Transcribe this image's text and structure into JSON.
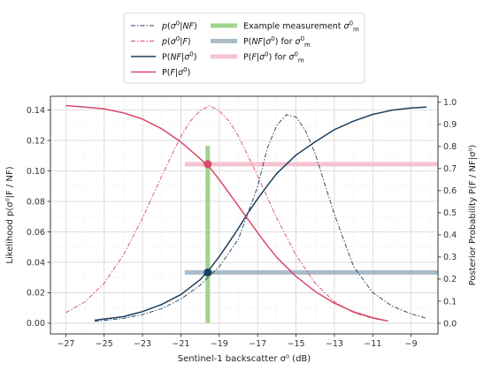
{
  "chart_data": {
    "type": "line",
    "xlabel": "Sentinel-1 backscatter σ⁰ (dB)",
    "ylabel_left": "Likelihood p(σ⁰|F / NF)",
    "ylabel_right": "Posterior Probability P(F / NF|σ⁰)",
    "xlim": [
      -27.8,
      -7.6
    ],
    "ylim_left": [
      -0.007,
      0.149
    ],
    "ylim_right": [
      -0.048,
      1.027
    ],
    "x_ticks": [
      -27,
      -25,
      -23,
      -21,
      -19,
      -17,
      -15,
      -13,
      -11,
      -9
    ],
    "x_tick_labels": [
      "−27",
      "−25",
      "−23",
      "−21",
      "−19",
      "−17",
      "−15",
      "−13",
      "−11",
      "−9"
    ],
    "y_left_ticks": [
      0.0,
      0.02,
      0.04,
      0.06,
      0.08,
      0.1,
      0.12,
      0.14
    ],
    "y_left_tick_labels": [
      "0.00",
      "0.02",
      "0.04",
      "0.06",
      "0.08",
      "0.10",
      "0.12",
      "0.14"
    ],
    "y_right_ticks": [
      0.0,
      0.1,
      0.2,
      0.3,
      0.4,
      0.5,
      0.6,
      0.7,
      0.8,
      0.9,
      1.0
    ],
    "y_right_tick_labels": [
      "0.0",
      "0.1",
      "0.2",
      "0.3",
      "0.4",
      "0.5",
      "0.6",
      "0.7",
      "0.8",
      "0.9",
      "1.0"
    ],
    "grid": true,
    "legend_placement": "top-center",
    "series": [
      {
        "name": "p(σ⁰|NF)",
        "axis": "left",
        "style": "dashdot",
        "color": "#1b3f5e",
        "x": [
          -25.5,
          -24,
          -23,
          -22,
          -21,
          -20,
          -19,
          -18,
          -17,
          -16.5,
          -16,
          -15.5,
          -15,
          -14.5,
          -14,
          -13,
          -12,
          -11,
          -10,
          -9,
          -8.2
        ],
        "y": [
          0.0012,
          0.0032,
          0.0057,
          0.0096,
          0.0159,
          0.0249,
          0.0372,
          0.0553,
          0.0898,
          0.1148,
          0.13,
          0.1369,
          0.1354,
          0.1263,
          0.1113,
          0.0715,
          0.0372,
          0.0201,
          0.0113,
          0.0062,
          0.0032
        ]
      },
      {
        "name": "p(σ⁰|F)",
        "axis": "left",
        "style": "dashdot",
        "color": "#d9496a",
        "x": [
          -27,
          -26,
          -25,
          -24,
          -23,
          -22,
          -21,
          -20.5,
          -20,
          -19.5,
          -19,
          -18.5,
          -18,
          -17,
          -16,
          -15,
          -14,
          -13,
          -12,
          -11,
          -10.5
        ],
        "y": [
          0.0069,
          0.0141,
          0.0262,
          0.0447,
          0.069,
          0.0967,
          0.1227,
          0.1329,
          0.1394,
          0.1428,
          0.1394,
          0.1329,
          0.1227,
          0.0967,
          0.069,
          0.0447,
          0.0262,
          0.0141,
          0.0069,
          0.0031,
          0.002
        ]
      },
      {
        "name": "P(NF|σ⁰)",
        "axis": "right",
        "style": "solid",
        "color": "#1b3f5e",
        "x": [
          -25.5,
          -24,
          -23,
          -22,
          -21,
          -20,
          -19.5,
          -19,
          -18.5,
          -18,
          -17.5,
          -17,
          -16.5,
          -16,
          -15,
          -14,
          -13,
          -12,
          -11,
          -10,
          -9,
          -8.2
        ],
        "y": [
          0.014,
          0.03,
          0.053,
          0.085,
          0.13,
          0.197,
          0.245,
          0.302,
          0.365,
          0.43,
          0.5,
          0.563,
          0.622,
          0.678,
          0.761,
          0.821,
          0.876,
          0.915,
          0.945,
          0.964,
          0.974,
          0.978
        ]
      },
      {
        "name": "P(F|σ⁰)",
        "axis": "right",
        "style": "solid",
        "color": "#d9496a",
        "x": [
          -27,
          -26,
          -25,
          -24,
          -23,
          -22,
          -21,
          -20,
          -19.5,
          -19,
          -18.5,
          -18,
          -17.5,
          -17,
          -16.5,
          -16,
          -15,
          -14,
          -13,
          -12,
          -11,
          -10.2
        ],
        "y": [
          0.985,
          0.978,
          0.97,
          0.952,
          0.924,
          0.88,
          0.82,
          0.745,
          0.705,
          0.65,
          0.59,
          0.53,
          0.47,
          0.41,
          0.352,
          0.298,
          0.212,
          0.144,
          0.091,
          0.052,
          0.025,
          0.01
        ]
      }
    ],
    "example_measurement": {
      "name": "Example measurement σ⁰ₘ",
      "x": -19.6,
      "y_range_left": [
        0.0,
        0.1165
      ],
      "color": "#9fd48d"
    },
    "posterior_markers": [
      {
        "name": "P(NF|σ⁰) for σ⁰ₘ",
        "x": -19.6,
        "value": 0.23,
        "line_x_start": -20.8,
        "line_x_end": -7.6,
        "line_color": "#a9bcc9",
        "point_color": "#1b3f5e"
      },
      {
        "name": "P(F|σ⁰) for σ⁰ₘ",
        "x": -19.6,
        "value": 0.72,
        "line_x_start": -20.8,
        "line_x_end": -7.6,
        "line_color": "#f4c3cf",
        "point_color": "#d9496a"
      }
    ]
  }
}
